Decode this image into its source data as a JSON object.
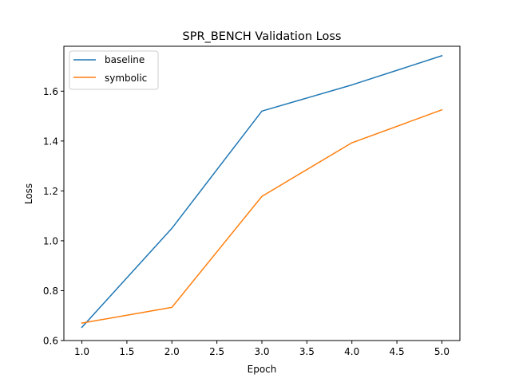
{
  "chart_data": {
    "type": "line",
    "title": "SPR_BENCH Validation Loss",
    "xlabel": "Epoch",
    "ylabel": "Loss",
    "x": [
      1.0,
      2.0,
      3.0,
      4.0,
      5.0
    ],
    "xlim": [
      0.8,
      5.2
    ],
    "ylim": [
      0.6,
      1.78
    ],
    "xticks": [
      1.0,
      1.5,
      2.0,
      2.5,
      3.0,
      3.5,
      4.0,
      4.5,
      5.0
    ],
    "xtick_labels": [
      "1.0",
      "1.5",
      "2.0",
      "2.5",
      "3.0",
      "3.5",
      "4.0",
      "4.5",
      "5.0"
    ],
    "yticks": [
      0.6,
      0.8,
      1.0,
      1.2,
      1.4,
      1.6
    ],
    "ytick_labels": [
      "0.6",
      "0.8",
      "1.0",
      "1.2",
      "1.4",
      "1.6"
    ],
    "grid": false,
    "legend": "top-left",
    "series": [
      {
        "name": "baseline",
        "color": "#1f77b4",
        "values": [
          0.653,
          1.05,
          1.52,
          1.625,
          1.742
        ]
      },
      {
        "name": "symbolic",
        "color": "#ff7f0e",
        "values": [
          0.67,
          0.733,
          1.178,
          1.393,
          1.525
        ]
      }
    ]
  }
}
